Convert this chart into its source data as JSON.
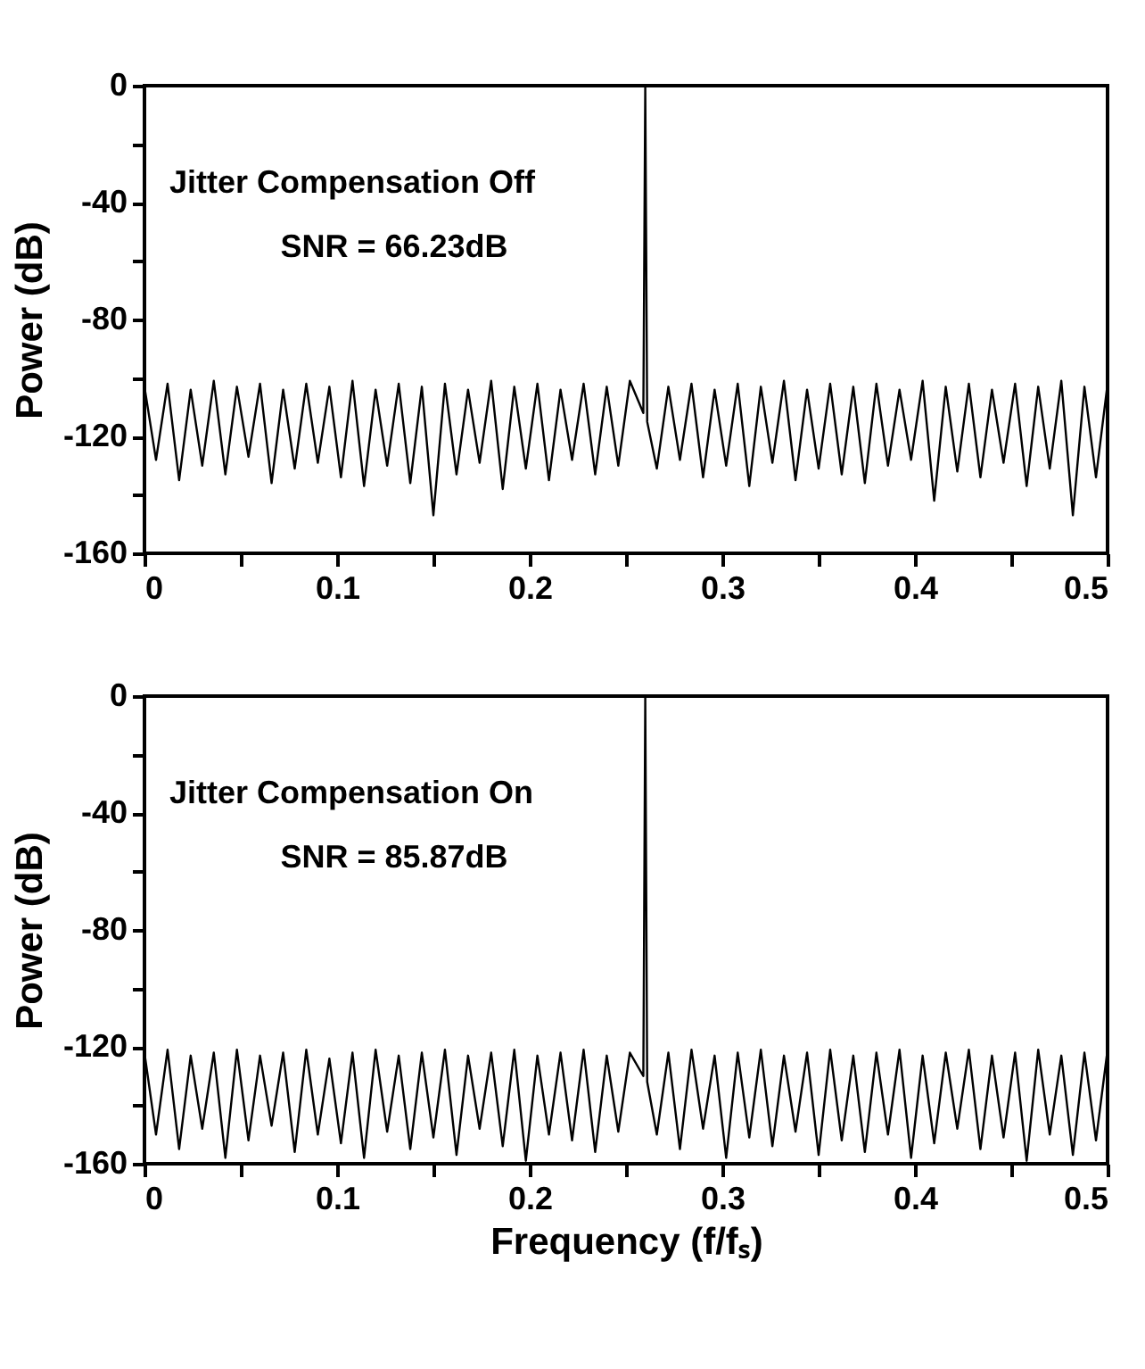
{
  "chart_data": [
    {
      "type": "line",
      "ylabel": "Power (dB)",
      "annotations": [
        "Jitter Compensation Off",
        "SNR = 66.23dB"
      ],
      "x": [
        0,
        0.006,
        0.012,
        0.018,
        0.024,
        0.03,
        0.036,
        0.042,
        0.048,
        0.054,
        0.06,
        0.066,
        0.072,
        0.078,
        0.084,
        0.09,
        0.096,
        0.102,
        0.108,
        0.114,
        0.12,
        0.126,
        0.132,
        0.138,
        0.144,
        0.15,
        0.156,
        0.162,
        0.168,
        0.174,
        0.18,
        0.186,
        0.192,
        0.198,
        0.204,
        0.21,
        0.216,
        0.222,
        0.228,
        0.234,
        0.24,
        0.246,
        0.252,
        0.259,
        0.26,
        0.261,
        0.266,
        0.272,
        0.278,
        0.284,
        0.29,
        0.296,
        0.302,
        0.308,
        0.314,
        0.32,
        0.326,
        0.332,
        0.338,
        0.344,
        0.35,
        0.356,
        0.362,
        0.368,
        0.374,
        0.38,
        0.386,
        0.392,
        0.398,
        0.404,
        0.41,
        0.416,
        0.422,
        0.428,
        0.434,
        0.44,
        0.446,
        0.452,
        0.458,
        0.464,
        0.47,
        0.476,
        0.482,
        0.488,
        0.494,
        0.5
      ],
      "series": [
        {
          "color": "#000000",
          "values": [
            -103,
            -128,
            -102,
            -135,
            -104,
            -130,
            -101,
            -133,
            -103,
            -127,
            -102,
            -136,
            -104,
            -131,
            -102,
            -129,
            -103,
            -134,
            -101,
            -137,
            -104,
            -130,
            -102,
            -136,
            -103,
            -147,
            -102,
            -133,
            -104,
            -129,
            -101,
            -138,
            -103,
            -131,
            -102,
            -135,
            -104,
            -128,
            -102,
            -133,
            -103,
            -130,
            -101,
            -112,
            0,
            -115,
            -131,
            -103,
            -128,
            -102,
            -134,
            -104,
            -130,
            -102,
            -137,
            -103,
            -129,
            -101,
            -135,
            -104,
            -131,
            -102,
            -133,
            -103,
            -136,
            -102,
            -130,
            -104,
            -128,
            -101,
            -142,
            -103,
            -132,
            -102,
            -134,
            -104,
            -129,
            -102,
            -137,
            -103,
            -131,
            -101,
            -147,
            -103,
            -134,
            -102
          ]
        }
      ],
      "xlim": [
        0,
        0.5
      ],
      "xticks": [
        0,
        {
          "value": 0.05,
          "label": null
        },
        0.1,
        {
          "value": 0.15,
          "label": null
        },
        0.2,
        {
          "value": 0.25,
          "label": null
        },
        0.3,
        {
          "value": 0.35,
          "label": null
        },
        0.4,
        {
          "value": 0.45,
          "label": null
        },
        0.5
      ],
      "ylim": [
        -160,
        0
      ],
      "yticks": [
        -160,
        {
          "value": -140,
          "label": null
        },
        -120,
        {
          "value": -100,
          "label": null
        },
        -80,
        {
          "value": -60,
          "label": null
        },
        -40,
        {
          "value": -20,
          "label": null
        },
        0
      ],
      "grid": false,
      "marker": "none",
      "line_style": "solid"
    },
    {
      "type": "line",
      "xlabel": "Frequency (f/fₛ)",
      "ylabel": "Power (dB)",
      "annotations": [
        "Jitter Compensation On",
        "SNR = 85.87dB"
      ],
      "x": [
        0,
        0.006,
        0.012,
        0.018,
        0.024,
        0.03,
        0.036,
        0.042,
        0.048,
        0.054,
        0.06,
        0.066,
        0.072,
        0.078,
        0.084,
        0.09,
        0.096,
        0.102,
        0.108,
        0.114,
        0.12,
        0.126,
        0.132,
        0.138,
        0.144,
        0.15,
        0.156,
        0.162,
        0.168,
        0.174,
        0.18,
        0.186,
        0.192,
        0.198,
        0.204,
        0.21,
        0.216,
        0.222,
        0.228,
        0.234,
        0.24,
        0.246,
        0.252,
        0.259,
        0.26,
        0.261,
        0.266,
        0.272,
        0.278,
        0.284,
        0.29,
        0.296,
        0.302,
        0.308,
        0.314,
        0.32,
        0.326,
        0.332,
        0.338,
        0.344,
        0.35,
        0.356,
        0.362,
        0.368,
        0.374,
        0.38,
        0.386,
        0.392,
        0.398,
        0.404,
        0.41,
        0.416,
        0.422,
        0.428,
        0.434,
        0.44,
        0.446,
        0.452,
        0.458,
        0.464,
        0.47,
        0.476,
        0.482,
        0.488,
        0.494,
        0.5
      ],
      "series": [
        {
          "color": "#000000",
          "values": [
            -122,
            -150,
            -121,
            -155,
            -123,
            -148,
            -122,
            -158,
            -121,
            -152,
            -123,
            -147,
            -122,
            -156,
            -121,
            -150,
            -124,
            -153,
            -122,
            -158,
            -121,
            -149,
            -123,
            -155,
            -122,
            -151,
            -121,
            -157,
            -123,
            -148,
            -122,
            -154,
            -121,
            -159,
            -123,
            -150,
            -122,
            -152,
            -121,
            -156,
            -123,
            -149,
            -122,
            -130,
            0,
            -132,
            -150,
            -122,
            -155,
            -121,
            -148,
            -123,
            -158,
            -122,
            -151,
            -121,
            -154,
            -123,
            -149,
            -122,
            -157,
            -121,
            -152,
            -123,
            -156,
            -122,
            -150,
            -121,
            -158,
            -123,
            -153,
            -122,
            -148,
            -121,
            -155,
            -123,
            -151,
            -122,
            -159,
            -121,
            -150,
            -123,
            -157,
            -122,
            -152,
            -121
          ]
        }
      ],
      "xlim": [
        0,
        0.5
      ],
      "xticks": [
        0,
        {
          "value": 0.05,
          "label": null
        },
        0.1,
        {
          "value": 0.15,
          "label": null
        },
        0.2,
        {
          "value": 0.25,
          "label": null
        },
        0.3,
        {
          "value": 0.35,
          "label": null
        },
        0.4,
        {
          "value": 0.45,
          "label": null
        },
        0.5
      ],
      "ylim": [
        -160,
        0
      ],
      "yticks": [
        -160,
        {
          "value": -140,
          "label": null
        },
        -120,
        {
          "value": -100,
          "label": null
        },
        -80,
        {
          "value": -60,
          "label": null
        },
        -40,
        {
          "value": -20,
          "label": null
        },
        0
      ],
      "grid": false,
      "marker": "none",
      "line_style": "solid"
    }
  ]
}
